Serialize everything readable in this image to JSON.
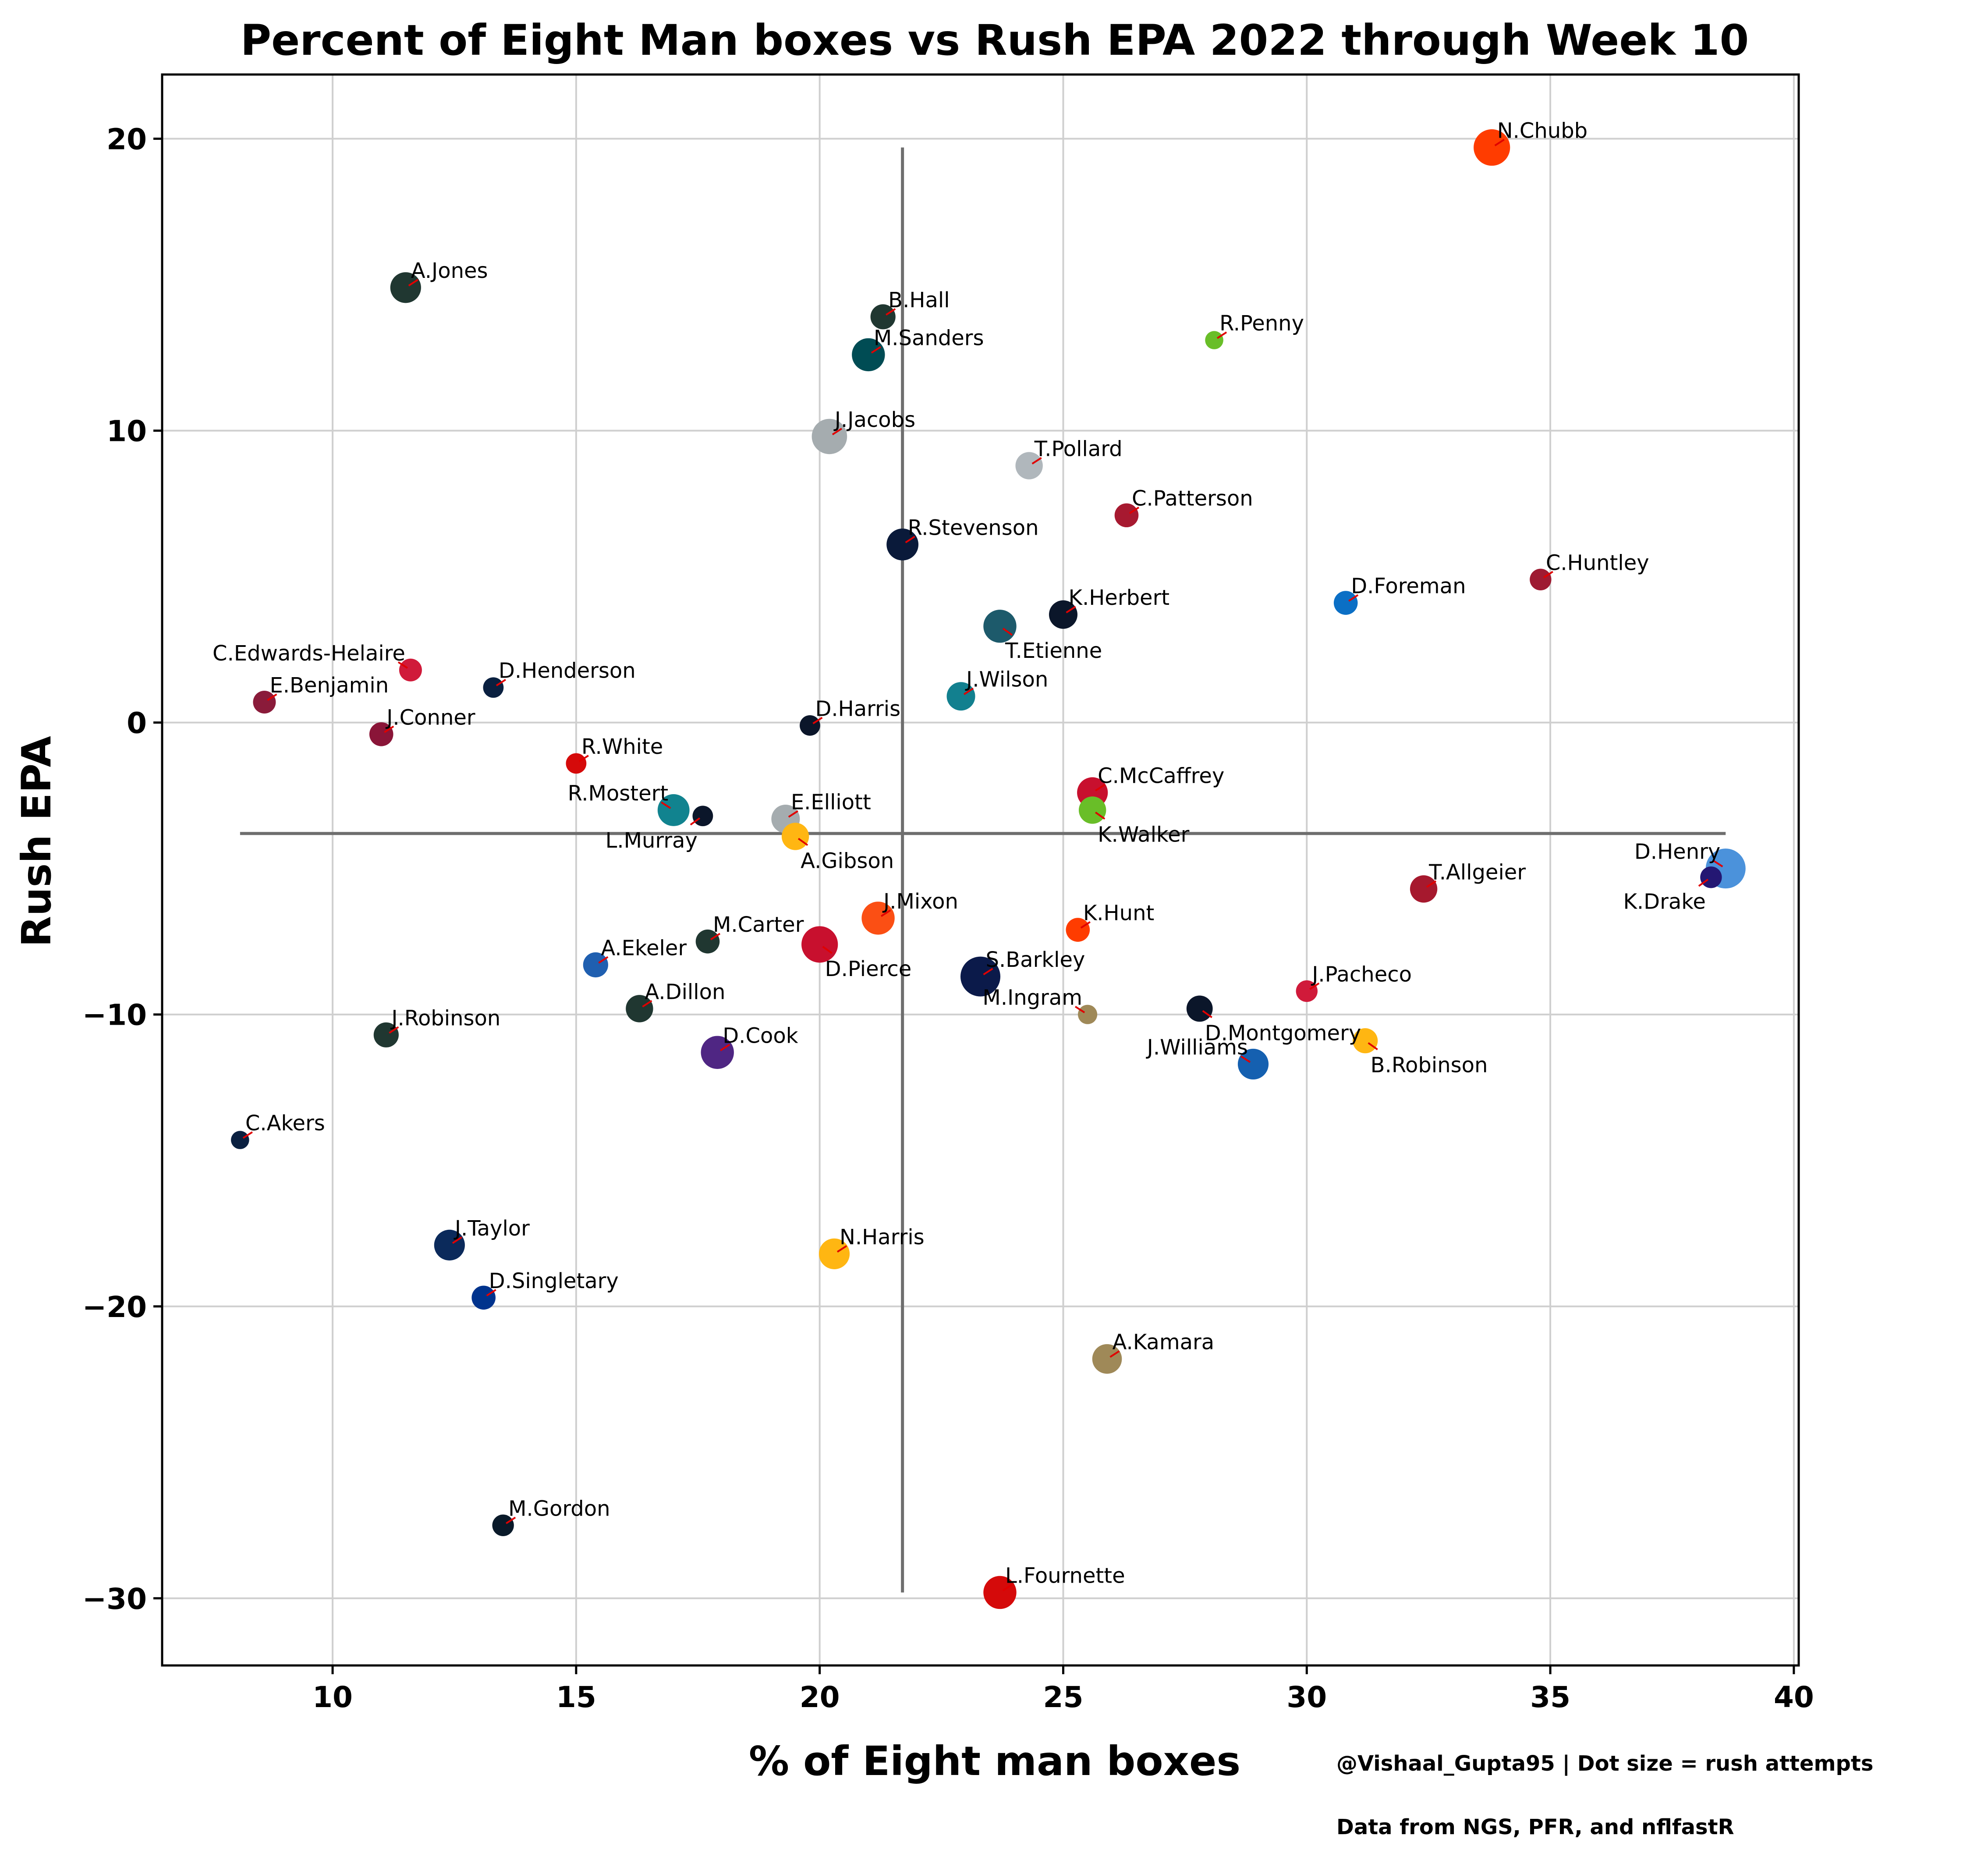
{
  "chart_data": {
    "type": "scatter",
    "title": "Percent of Eight Man boxes vs Rush EPA 2022 through Week 10",
    "xlabel": "% of Eight man boxes",
    "ylabel": "Rush EPA",
    "xlim": [
      6.5,
      40.1
    ],
    "ylim": [
      -32.3,
      22.2
    ],
    "xticks": [
      10,
      15,
      20,
      25,
      30,
      35,
      40
    ],
    "yticks": [
      20,
      10,
      0,
      -10,
      -20,
      -30
    ],
    "xtick_labels": [
      "10",
      "15",
      "20",
      "25",
      "30",
      "35",
      "40"
    ],
    "ytick_labels": [
      "20",
      "10",
      "0",
      "−10",
      "−20",
      "−30"
    ],
    "grid": true,
    "mean_lines": {
      "x": 21.7,
      "y": -3.8
    },
    "notes": [
      "@Vishaal_Gupta95 | Dot size = rush attempts",
      "Data from NGS, PFR, and nflfastR"
    ],
    "points": [
      {
        "name": "N.Chubb",
        "x": 33.8,
        "y": 19.7,
        "size": 1.6,
        "color": "#FF3C00",
        "label_pos": "right-up"
      },
      {
        "name": "A.Jones",
        "x": 11.5,
        "y": 14.9,
        "size": 1.35,
        "color": "#203731",
        "label_pos": "right-up"
      },
      {
        "name": "B.Hall",
        "x": 21.3,
        "y": 13.9,
        "size": 1.1,
        "color": "#203731",
        "label_pos": "right-up"
      },
      {
        "name": "R.Penny",
        "x": 28.1,
        "y": 13.1,
        "size": 0.8,
        "color": "#69BE28",
        "label_pos": "right-up"
      },
      {
        "name": "M.Sanders",
        "x": 21.0,
        "y": 12.6,
        "size": 1.45,
        "color": "#004C54",
        "label_pos": "right-up"
      },
      {
        "name": "J.Jacobs",
        "x": 20.2,
        "y": 9.8,
        "size": 1.55,
        "color": "#A5ACAF",
        "label_pos": "right-up"
      },
      {
        "name": "T.Pollard",
        "x": 24.3,
        "y": 8.8,
        "size": 1.2,
        "color": "#B0B7BC",
        "label_pos": "right-up"
      },
      {
        "name": "C.Patterson",
        "x": 26.3,
        "y": 7.1,
        "size": 1.05,
        "color": "#A71930",
        "label_pos": "right-up"
      },
      {
        "name": "R.Stevenson",
        "x": 21.7,
        "y": 6.1,
        "size": 1.4,
        "color": "#0A1A3A",
        "label_pos": "right-up"
      },
      {
        "name": "C.Huntley",
        "x": 34.8,
        "y": 4.9,
        "size": 0.95,
        "color": "#9E1B32",
        "label_pos": "right-up"
      },
      {
        "name": "D.Foreman",
        "x": 30.8,
        "y": 4.1,
        "size": 1.05,
        "color": "#0B6FC5",
        "label_pos": "right-up"
      },
      {
        "name": "K.Herbert",
        "x": 25.0,
        "y": 3.7,
        "size": 1.25,
        "color": "#0B162A",
        "label_pos": "right-up"
      },
      {
        "name": "T.Etienne",
        "x": 23.7,
        "y": 3.3,
        "size": 1.45,
        "color": "#1D5A6B",
        "label_pos": "right-down"
      },
      {
        "name": "C.Edwards-Helaire",
        "x": 11.6,
        "y": 1.8,
        "size": 1.0,
        "color": "#D01A3A",
        "label_pos": "left-up"
      },
      {
        "name": "D.Henderson",
        "x": 13.3,
        "y": 1.2,
        "size": 0.9,
        "color": "#0A2040",
        "label_pos": "right-up"
      },
      {
        "name": "J.Wilson",
        "x": 22.9,
        "y": 0.9,
        "size": 1.25,
        "color": "#12808F",
        "label_pos": "right-up"
      },
      {
        "name": "E.Benjamin",
        "x": 8.6,
        "y": 0.7,
        "size": 1.0,
        "color": "#8A1B3A",
        "label_pos": "right-up"
      },
      {
        "name": "D.Harris",
        "x": 19.8,
        "y": -0.1,
        "size": 0.9,
        "color": "#0B162A",
        "label_pos": "right-up"
      },
      {
        "name": "J.Conner",
        "x": 11.0,
        "y": -0.4,
        "size": 1.05,
        "color": "#8A1538",
        "label_pos": "right-up"
      },
      {
        "name": "R.White",
        "x": 15.0,
        "y": -1.4,
        "size": 0.9,
        "color": "#D50A0A",
        "label_pos": "right-up"
      },
      {
        "name": "C.McCaffrey",
        "x": 25.6,
        "y": -2.4,
        "size": 1.35,
        "color": "#C8102E",
        "label_pos": "right-up"
      },
      {
        "name": "R.Mostert",
        "x": 17.0,
        "y": -3.0,
        "size": 1.4,
        "color": "#11838F",
        "label_pos": "left-up"
      },
      {
        "name": "K.Walker",
        "x": 25.6,
        "y": -3.0,
        "size": 1.2,
        "color": "#69BE28",
        "label_pos": "right-down"
      },
      {
        "name": "L.Murray",
        "x": 17.6,
        "y": -3.2,
        "size": 0.9,
        "color": "#0B162A",
        "label_pos": "left-down"
      },
      {
        "name": "E.Elliott",
        "x": 19.3,
        "y": -3.3,
        "size": 1.25,
        "color": "#A5ACAF",
        "label_pos": "right-up"
      },
      {
        "name": "A.Gibson",
        "x": 19.5,
        "y": -3.9,
        "size": 1.2,
        "color": "#FFB612",
        "label_pos": "right-down"
      },
      {
        "name": "D.Henry",
        "x": 38.6,
        "y": -5.0,
        "size": 1.75,
        "color": "#4B92DB",
        "label_pos": "left-up"
      },
      {
        "name": "K.Drake",
        "x": 38.3,
        "y": -5.3,
        "size": 0.95,
        "color": "#241773",
        "label_pos": "left-down"
      },
      {
        "name": "T.Allgeier",
        "x": 32.4,
        "y": -5.7,
        "size": 1.2,
        "color": "#A6192E",
        "label_pos": "right-up"
      },
      {
        "name": "J.Mixon",
        "x": 21.2,
        "y": -6.7,
        "size": 1.45,
        "color": "#FB4F14",
        "label_pos": "right-up"
      },
      {
        "name": "K.Hunt",
        "x": 25.3,
        "y": -7.1,
        "size": 1.05,
        "color": "#FF3C00",
        "label_pos": "right-up"
      },
      {
        "name": "M.Carter",
        "x": 17.7,
        "y": -7.5,
        "size": 1.05,
        "color": "#203731",
        "label_pos": "right-up"
      },
      {
        "name": "D.Pierce",
        "x": 20.0,
        "y": -7.6,
        "size": 1.6,
        "color": "#C8102E",
        "label_pos": "right-down"
      },
      {
        "name": "A.Ekeler",
        "x": 15.4,
        "y": -8.3,
        "size": 1.1,
        "color": "#1F5FB0",
        "label_pos": "right-up"
      },
      {
        "name": "S.Barkley",
        "x": 23.3,
        "y": -8.7,
        "size": 1.75,
        "color": "#0B1A4A",
        "label_pos": "right-up"
      },
      {
        "name": "J.Pacheco",
        "x": 30.0,
        "y": -9.2,
        "size": 0.95,
        "color": "#D01A3A",
        "label_pos": "right-up"
      },
      {
        "name": "D.Montgomery",
        "x": 27.8,
        "y": -9.8,
        "size": 1.15,
        "color": "#0B162A",
        "label_pos": "right-down"
      },
      {
        "name": "A.Dillon",
        "x": 16.3,
        "y": -9.8,
        "size": 1.2,
        "color": "#203731",
        "label_pos": "right-up"
      },
      {
        "name": "M.Ingram",
        "x": 25.5,
        "y": -10.0,
        "size": 0.85,
        "color": "#9F8958",
        "label_pos": "left-up"
      },
      {
        "name": "J.Robinson",
        "x": 11.1,
        "y": -10.7,
        "size": 1.1,
        "color": "#203731",
        "label_pos": "right-up"
      },
      {
        "name": "B.Robinson",
        "x": 31.2,
        "y": -10.9,
        "size": 1.1,
        "color": "#FFB612",
        "label_pos": "right-down"
      },
      {
        "name": "D.Cook",
        "x": 17.9,
        "y": -11.3,
        "size": 1.45,
        "color": "#4F2683",
        "label_pos": "right-up"
      },
      {
        "name": "J.Williams",
        "x": 28.9,
        "y": -11.7,
        "size": 1.35,
        "color": "#1560B0",
        "label_pos": "left-up"
      },
      {
        "name": "C.Akers",
        "x": 8.1,
        "y": -14.3,
        "size": 0.8,
        "color": "#0A2040",
        "label_pos": "right-up"
      },
      {
        "name": "J.Taylor",
        "x": 12.4,
        "y": -17.9,
        "size": 1.35,
        "color": "#0B2A5B",
        "label_pos": "right-up"
      },
      {
        "name": "N.Harris",
        "x": 20.3,
        "y": -18.2,
        "size": 1.35,
        "color": "#FFB612",
        "label_pos": "right-up"
      },
      {
        "name": "D.Singletary",
        "x": 13.1,
        "y": -19.7,
        "size": 1.05,
        "color": "#00338D",
        "label_pos": "right-up"
      },
      {
        "name": "A.Kamara",
        "x": 25.9,
        "y": -21.8,
        "size": 1.3,
        "color": "#9F8958",
        "label_pos": "right-up"
      },
      {
        "name": "M.Gordon",
        "x": 13.5,
        "y": -27.5,
        "size": 0.95,
        "color": "#0A1A2A",
        "label_pos": "right-up"
      },
      {
        "name": "L.Fournette",
        "x": 23.7,
        "y": -29.8,
        "size": 1.45,
        "color": "#D50A0A",
        "label_pos": "right-up"
      }
    ]
  }
}
